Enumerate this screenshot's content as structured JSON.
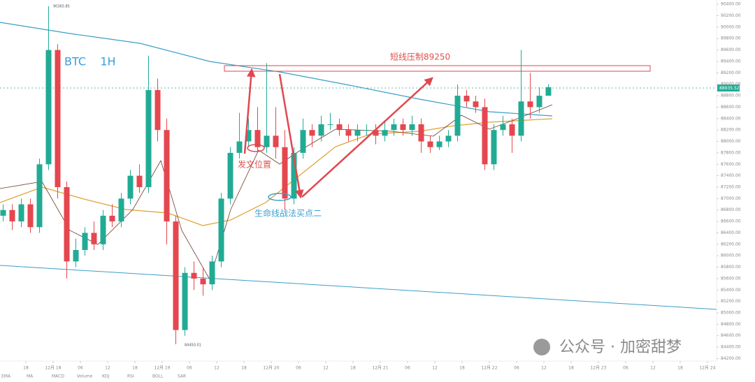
{
  "chart_data": {
    "type": "candlestick",
    "title": "BTC    1H",
    "annotations": [
      "短线压制89250",
      "发文位置",
      "生命线战法买点二"
    ],
    "high_label": "90365.85",
    "low_label": "84450.01",
    "price_label": "88935.52",
    "watermark": "公众号 · 加密甜梦",
    "toolbar": [
      "EMA",
      "MA",
      "MACD",
      "Volume",
      "KDJ",
      "RSI",
      "BOLL",
      "SAR"
    ],
    "up_color": "#22ab94",
    "down_color": "#e5474f",
    "x": [
      -5,
      -3,
      -1,
      1,
      3,
      5,
      7,
      9,
      11,
      13,
      15,
      17,
      19,
      21,
      23,
      25,
      27,
      29,
      31,
      33,
      35,
      37,
      39,
      41,
      43,
      45,
      47,
      49,
      51,
      53,
      55,
      57,
      59,
      61,
      63,
      65,
      67,
      69,
      71,
      73,
      75,
      77,
      79,
      81,
      83,
      85,
      87,
      89,
      91,
      93,
      95,
      97,
      99,
      101,
      103,
      105,
      107,
      109,
      111,
      113,
      115
    ],
    "open": [
      86700,
      86800,
      86600,
      86900,
      86500,
      87600,
      89600,
      87200,
      85900,
      86100,
      86400,
      86200,
      86700,
      86600,
      87000,
      87400,
      87200,
      88900,
      88200,
      86600,
      84700,
      85700,
      85600,
      85500,
      85900,
      87000,
      87800,
      88000,
      88200,
      87900,
      88100,
      87900,
      87000,
      87800,
      88200,
      88100,
      88300,
      88300,
      88200,
      88100,
      88200,
      88200,
      88100,
      88200,
      88300,
      88200,
      88300,
      88000,
      87900,
      88000,
      88100,
      88800,
      88700,
      88600,
      87600,
      88200,
      88300,
      88100,
      88700,
      88600,
      88800
    ],
    "high": [
      86900,
      86900,
      87000,
      87000,
      87700,
      90365.85,
      89700,
      87300,
      86300,
      86500,
      86600,
      86800,
      86900,
      87100,
      87500,
      87600,
      89500,
      89100,
      88400,
      86700,
      85800,
      85900,
      85800,
      86000,
      87100,
      87900,
      88500,
      88400,
      88600,
      89370,
      88600,
      88200,
      87900,
      88400,
      88300,
      88450,
      88500,
      88400,
      88300,
      88300,
      88300,
      88300,
      88350,
      88400,
      88400,
      88450,
      88400,
      88100,
      88100,
      88200,
      89000,
      88900,
      88800,
      88750,
      88300,
      88450,
      88400,
      89600,
      89200,
      88950,
      89000
    ],
    "low": [
      86600,
      86450,
      86500,
      86400,
      86400,
      87500,
      87000,
      85600,
      85800,
      86000,
      86100,
      86100,
      86500,
      86500,
      86900,
      87100,
      87100,
      88000,
      86200,
      84450.01,
      84600,
      85400,
      85300,
      85400,
      85800,
      86900,
      87700,
      87900,
      87800,
      87800,
      87700,
      86800,
      86900,
      87700,
      87900,
      88000,
      88200,
      88100,
      88000,
      88000,
      88100,
      87950,
      88000,
      88100,
      88100,
      88100,
      87800,
      87800,
      87850,
      87900,
      88000,
      88600,
      88500,
      87500,
      87500,
      88100,
      87800,
      88000,
      88400,
      88500,
      88800
    ],
    "close": [
      86800,
      86600,
      86900,
      86500,
      87600,
      89600,
      87200,
      85900,
      86100,
      86400,
      86200,
      86700,
      86600,
      87000,
      87400,
      87200,
      88900,
      88200,
      86600,
      84700,
      85700,
      85600,
      85500,
      85900,
      87000,
      87800,
      88000,
      88200,
      87900,
      88100,
      87900,
      87000,
      87800,
      88200,
      88100,
      88300,
      88300,
      88200,
      88100,
      88200,
      88200,
      88100,
      88200,
      88300,
      88200,
      88300,
      88000,
      87900,
      88000,
      88100,
      88800,
      88700,
      88600,
      87600,
      88200,
      88300,
      88100,
      88700,
      88600,
      88800,
      88950
    ],
    "xlim": [
      -5.692,
      152
    ],
    "xticks": [
      {
        "value": 0,
        "label": "18"
      },
      {
        "value": 6,
        "label": "12月 18"
      },
      {
        "value": 12,
        "label": "06"
      },
      {
        "value": 18,
        "label": "12"
      },
      {
        "value": 24,
        "label": "18"
      },
      {
        "value": 30,
        "label": "12月 19"
      },
      {
        "value": 36,
        "label": "06"
      },
      {
        "value": 42,
        "label": "12"
      },
      {
        "value": 48,
        "label": "18"
      },
      {
        "value": 54,
        "label": "12月 20"
      },
      {
        "value": 60,
        "label": "06"
      },
      {
        "value": 66,
        "label": "12"
      },
      {
        "value": 72,
        "label": "18"
      },
      {
        "value": 78,
        "label": "12月 21"
      },
      {
        "value": 84,
        "label": "06"
      },
      {
        "value": 90,
        "label": "12"
      },
      {
        "value": 96,
        "label": "18"
      },
      {
        "value": 102,
        "label": "12月 22"
      },
      {
        "value": 108,
        "label": "06"
      },
      {
        "value": 114,
        "label": "12"
      },
      {
        "value": 120,
        "label": "18"
      },
      {
        "value": 126,
        "label": "12月 23"
      },
      {
        "value": 132,
        "label": "06"
      },
      {
        "value": 138,
        "label": "12"
      },
      {
        "value": 144,
        "label": "18"
      },
      {
        "value": 150,
        "label": "12月 24"
      }
    ],
    "ylim": [
      84157,
      90475
    ],
    "yticks": [
      {
        "value": 84200,
        "label": "84200.00"
      },
      {
        "value": 84400,
        "label": "84400.00"
      },
      {
        "value": 84600,
        "label": "84600.00"
      },
      {
        "value": 84800,
        "label": "84800.00"
      },
      {
        "value": 85000,
        "label": "85000.00"
      },
      {
        "value": 85200,
        "label": "85200.00"
      },
      {
        "value": 85400,
        "label": "85400.00"
      },
      {
        "value": 85600,
        "label": "85600.00"
      },
      {
        "value": 85800,
        "label": "85800.00"
      },
      {
        "value": 86000,
        "label": "86000.00"
      },
      {
        "value": 86200,
        "label": "86200.00"
      },
      {
        "value": 86400,
        "label": "86400.00"
      },
      {
        "value": 86600,
        "label": "86600.00"
      },
      {
        "value": 86800,
        "label": "86800.00"
      },
      {
        "value": 87000,
        "label": "87000.00"
      },
      {
        "value": 87200,
        "label": "87200.00"
      },
      {
        "value": 87400,
        "label": "87400.00"
      },
      {
        "value": 87600,
        "label": "87600.00"
      },
      {
        "value": 87800,
        "label": "87800.00"
      },
      {
        "value": 88000,
        "label": "88000.00"
      },
      {
        "value": 88200,
        "label": "88200.00"
      },
      {
        "value": 88400,
        "label": "88400.00"
      },
      {
        "value": 88600,
        "label": "88600.00"
      },
      {
        "value": 88800,
        "label": "88800.00"
      },
      {
        "value": 89000,
        "label": "89000.00"
      },
      {
        "value": 89200,
        "label": "89200.00"
      },
      {
        "value": 89400,
        "label": "89400.00"
      },
      {
        "value": 89600,
        "label": "89600.00"
      },
      {
        "value": 89800,
        "label": "89800.00"
      },
      {
        "value": 90000,
        "label": "90000.00"
      },
      {
        "value": 90200,
        "label": "90200.00"
      },
      {
        "value": 90400,
        "label": "90400.00"
      }
    ]
  }
}
